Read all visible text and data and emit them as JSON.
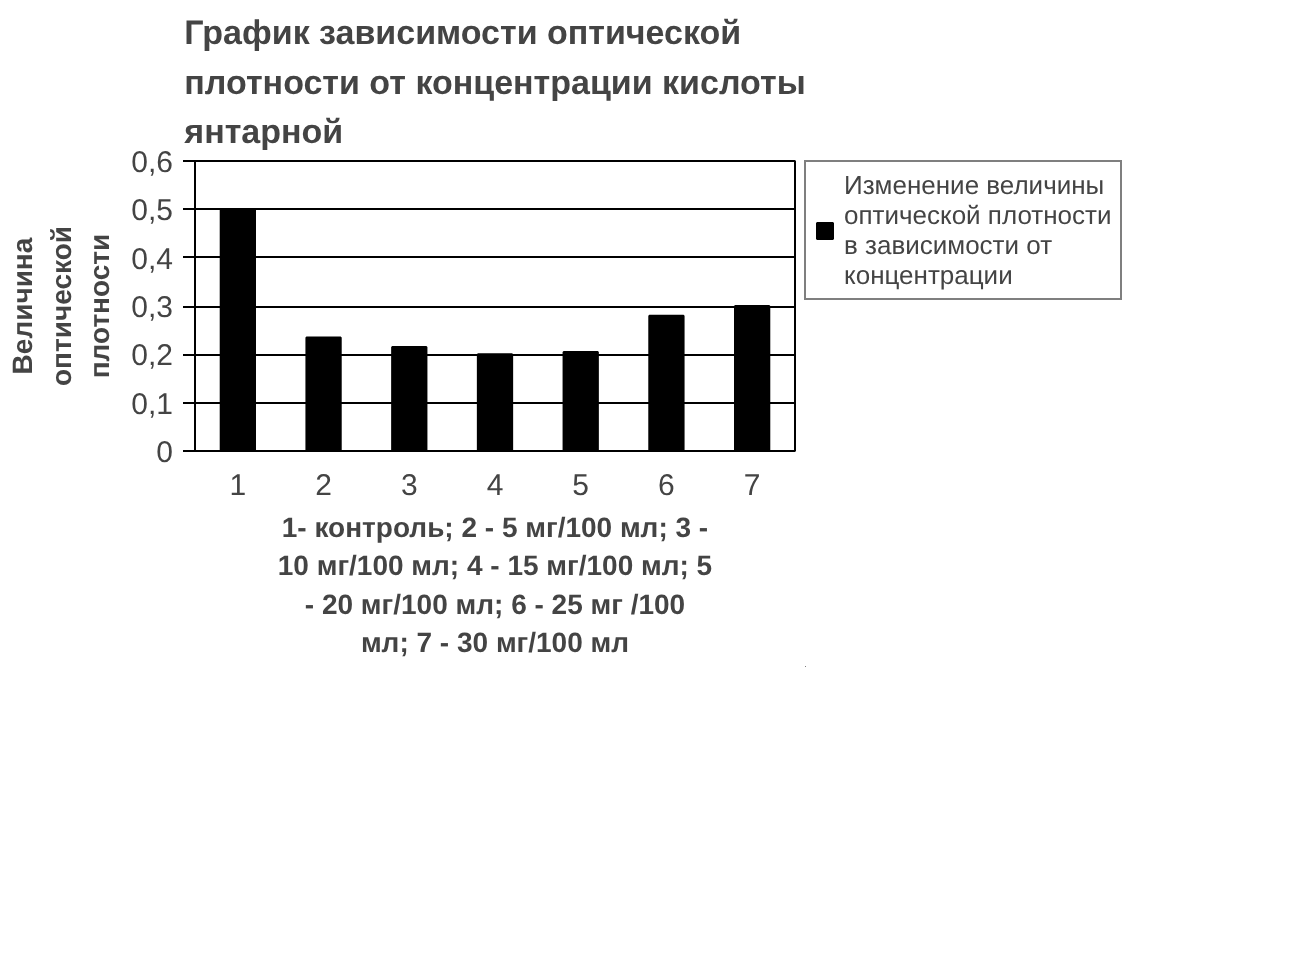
{
  "chart_data": {
    "type": "bar",
    "title": "График зависимости оптической плотности от концентрации кислоты янтарной",
    "xlabel": "1- контроль; 2 - 5 мг/100 мл; 3 - 10 мг/100 мл; 4 - 15 мг/100 мл; 5 - 20 мг/100 мл; 6 - 25 мг /100 мл; 7 - 30 мг/100 мл",
    "ylabel": "Величина оптической плотности",
    "categories": [
      "1",
      "2",
      "3",
      "4",
      "5",
      "6",
      "7"
    ],
    "series": [
      {
        "name": "Изменение величины оптической плотности в зависимости от концентрации",
        "color": "#000000",
        "values": [
          0.5,
          0.235,
          0.215,
          0.2,
          0.205,
          0.28,
          0.3
        ]
      }
    ],
    "ylim": [
      0,
      0.6
    ],
    "yticks": [
      {
        "value": 0,
        "label": "0"
      },
      {
        "value": 0.1,
        "label": "0,1"
      },
      {
        "value": 0.2,
        "label": "0,2"
      },
      {
        "value": 0.3,
        "label": "0,3"
      },
      {
        "value": 0.4,
        "label": "0,4"
      },
      {
        "value": 0.5,
        "label": "0,5"
      },
      {
        "value": 0.6,
        "label": "0,6"
      }
    ],
    "grid": "y",
    "legend": "right"
  }
}
